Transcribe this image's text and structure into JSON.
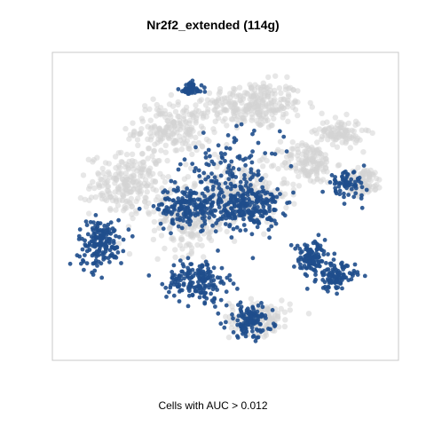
{
  "chart_data": {
    "type": "scatter",
    "title": "Nr2f2_extended (114g)",
    "caption": "Cells with AUC > 0.012",
    "xlabel": "",
    "ylabel": "",
    "axes_visible": false,
    "grid": false,
    "legend": "none",
    "colors": {
      "background_cells": "#d3d3d3",
      "highlighted_cells": "#1f4e8c",
      "frame": "#c8c8c8"
    },
    "series": [
      {
        "values": "gray background cells (AUC <= threshold)",
        "clusters": [
          [
            0.58,
            0.83,
            0.13,
            0.07,
            260
          ],
          [
            0.35,
            0.75,
            0.1,
            0.08,
            200
          ],
          [
            0.22,
            0.57,
            0.1,
            0.09,
            230
          ],
          [
            0.55,
            0.54,
            0.12,
            0.09,
            220
          ],
          [
            0.74,
            0.64,
            0.07,
            0.06,
            140
          ],
          [
            0.9,
            0.58,
            0.05,
            0.04,
            90
          ],
          [
            0.6,
            0.14,
            0.08,
            0.05,
            120
          ],
          [
            0.4,
            0.45,
            0.1,
            0.09,
            180
          ],
          [
            0.83,
            0.74,
            0.06,
            0.04,
            100
          ]
        ]
      },
      {
        "values": "blue highlighted cells (AUC > 0.012)",
        "clusters": [
          [
            0.4,
            0.5,
            0.09,
            0.06,
            210
          ],
          [
            0.57,
            0.5,
            0.08,
            0.07,
            230
          ],
          [
            0.14,
            0.38,
            0.06,
            0.07,
            170
          ],
          [
            0.42,
            0.26,
            0.08,
            0.06,
            180
          ],
          [
            0.75,
            0.33,
            0.05,
            0.05,
            120
          ],
          [
            0.82,
            0.27,
            0.05,
            0.04,
            100
          ],
          [
            0.57,
            0.13,
            0.06,
            0.05,
            120
          ],
          [
            0.4,
            0.88,
            0.03,
            0.02,
            50
          ],
          [
            0.52,
            0.62,
            0.13,
            0.1,
            110
          ],
          [
            0.85,
            0.57,
            0.05,
            0.04,
            70
          ]
        ]
      }
    ]
  }
}
